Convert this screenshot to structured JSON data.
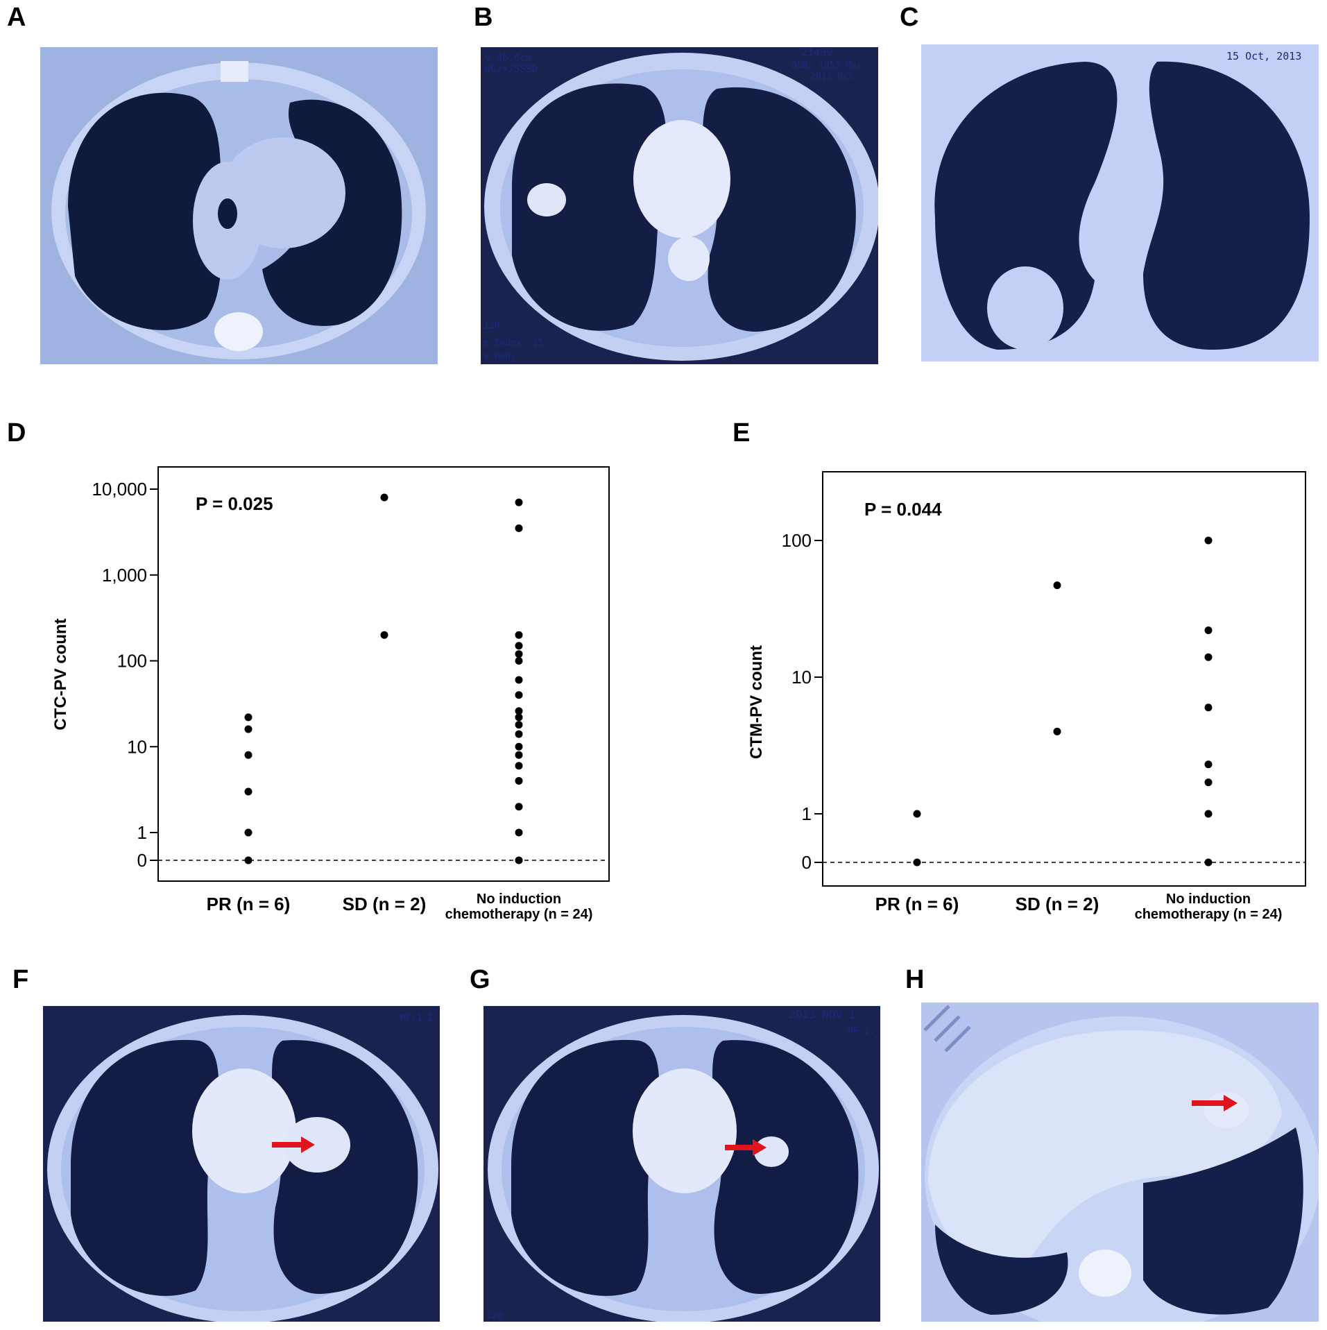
{
  "panels": {
    "A": {
      "letter": "A"
    },
    "B": {
      "letter": "B",
      "overlay_top": "V 36.0cm",
      "overlay_top2": "WG/+/SSSD",
      "overlay_right1": "21499",
      "overlay_right2": "DOB: 1955 Mar",
      "overlay_right3": "2013 Oct",
      "overlay_bl1": "120",
      "overlay_bl2": "e Index: 15",
      "overlay_bl3": "e body"
    },
    "C": {
      "letter": "C",
      "overlay_date": "15 Oct, 2013"
    },
    "D": {
      "letter": "D"
    },
    "E": {
      "letter": "E"
    },
    "F": {
      "letter": "F",
      "overlay_mf": "MF:1.1"
    },
    "G": {
      "letter": "G",
      "overlay_date": "2013 NOV 1",
      "overlay_mf": "MF:1.",
      "overlay_bl": "120"
    },
    "H": {
      "letter": "H"
    }
  },
  "colors": {
    "arrow": "#e0141c",
    "ct_tint": "#b9c6ee",
    "lung": "#0f1b3c"
  },
  "chart_data": [
    {
      "type": "scatter",
      "panel": "D",
      "ylabel": "CTC-PV count",
      "yscale": "log-with-zero",
      "yticks": [
        0,
        1,
        10,
        100,
        1000,
        10000
      ],
      "ytick_labels": [
        "0",
        "1",
        "10",
        "100",
        "1,000",
        "10,000"
      ],
      "annotation": "P = 0.025",
      "categories": [
        {
          "line1": "PR (n = 6)",
          "line2": ""
        },
        {
          "line1": "SD (n = 2)",
          "line2": ""
        },
        {
          "line1": "No induction",
          "line2": "chemotherapy (n = 24)"
        }
      ],
      "series": [
        {
          "category": 0,
          "values": [
            0,
            1,
            3,
            8,
            16,
            22
          ]
        },
        {
          "category": 1,
          "values": [
            200,
            8000
          ]
        },
        {
          "category": 2,
          "values": [
            0,
            1,
            2,
            4,
            6,
            8,
            10,
            14,
            18,
            22,
            26,
            40,
            60,
            100,
            120,
            150,
            200,
            3500,
            7000
          ]
        }
      ],
      "baseline": "dashed at 0"
    },
    {
      "type": "scatter",
      "panel": "E",
      "ylabel": "CTM-PV count",
      "yscale": "log-with-zero",
      "yticks": [
        0,
        1,
        10,
        100
      ],
      "ytick_labels": [
        "0",
        "1",
        "10",
        "100"
      ],
      "annotation": "P = 0.044",
      "categories": [
        {
          "line1": "PR (n = 6)",
          "line2": ""
        },
        {
          "line1": "SD (n = 2)",
          "line2": ""
        },
        {
          "line1": "No induction",
          "line2": "chemotherapy (n = 24)"
        }
      ],
      "series": [
        {
          "category": 0,
          "values": [
            0,
            1
          ]
        },
        {
          "category": 1,
          "values": [
            4,
            47
          ]
        },
        {
          "category": 2,
          "values": [
            0,
            1,
            1.7,
            2.3,
            6,
            14,
            22,
            100
          ]
        }
      ],
      "baseline": "dashed at 0"
    }
  ]
}
